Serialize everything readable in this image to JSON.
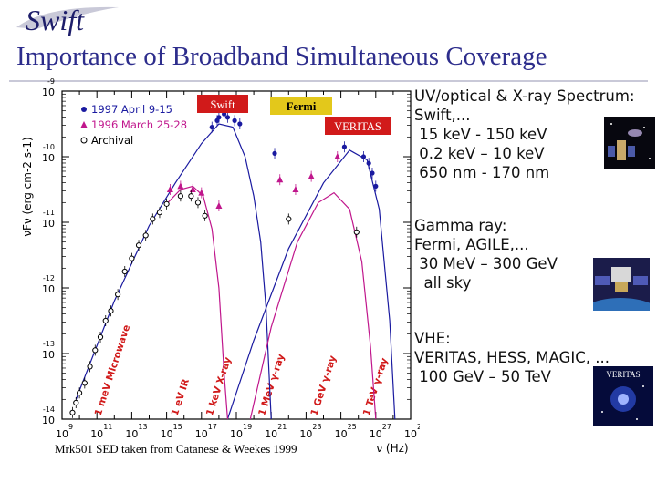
{
  "header": {
    "logo_text": "Swift",
    "title": "Importance of Broadband Simultaneous Coverage"
  },
  "chart_data": {
    "type": "scatter",
    "xlabel": "ν (Hz)",
    "ylabel": "νFν (erg cm-2 s-1)",
    "xlim": [
      9,
      29
    ],
    "ylim": [
      -14,
      -9
    ],
    "x_tick_labels": [
      {
        "base": "10",
        "exp": "9"
      },
      {
        "base": "10",
        "exp": "11"
      },
      {
        "base": "10",
        "exp": "13"
      },
      {
        "base": "10",
        "exp": "15"
      },
      {
        "base": "10",
        "exp": "17"
      },
      {
        "base": "10",
        "exp": "19"
      },
      {
        "base": "10",
        "exp": "21"
      },
      {
        "base": "10",
        "exp": "23"
      },
      {
        "base": "10",
        "exp": "25"
      },
      {
        "base": "10",
        "exp": "27"
      },
      {
        "base": "10",
        "exp": "29"
      }
    ],
    "y_tick_labels": [
      {
        "base": "10",
        "exp": "-9"
      },
      {
        "base": "10",
        "exp": "-10"
      },
      {
        "base": "10",
        "exp": "-11"
      },
      {
        "base": "10",
        "exp": "-12"
      },
      {
        "base": "10",
        "exp": "-13"
      },
      {
        "base": "10",
        "exp": "-14"
      }
    ],
    "legend": [
      {
        "marker": "filled-circle",
        "color": "#1a1aa0",
        "label": "1997 April 9-15"
      },
      {
        "marker": "triangle",
        "color": "#c0168c",
        "label": "1996 March 25-28"
      },
      {
        "marker": "open-circle",
        "color": "#000000",
        "label": "Archival"
      }
    ],
    "instrument_boxes": [
      {
        "label": "Swift",
        "color": "#d11a1a"
      },
      {
        "label": "Fermi",
        "color": "#e3c81b"
      },
      {
        "label": "VERITAS",
        "color": "#d11a1a"
      }
    ],
    "band_labels": [
      "1 meV Microwave",
      "1 eV IR",
      "1 keV X-ray",
      "1 MeV γ-ray",
      "1 GeV γ-ray",
      "1 TeV γ-ray"
    ],
    "band_positions": [
      11,
      15.4,
      17.4,
      20.4,
      23.4,
      26.4
    ],
    "series": [
      {
        "name": "1997 April 9-15",
        "color": "#1a1aa0",
        "marker": "filled-circle",
        "points": [
          [
            17.6,
            -9.55
          ],
          [
            17.9,
            -9.45
          ],
          [
            18.0,
            -9.4
          ],
          [
            18.3,
            -9.35
          ],
          [
            18.5,
            -9.4
          ],
          [
            18.9,
            -9.45
          ],
          [
            19.2,
            -9.5
          ],
          [
            21.2,
            -9.95
          ],
          [
            25.2,
            -9.85
          ],
          [
            26.3,
            -10.0
          ],
          [
            26.6,
            -10.1
          ],
          [
            26.8,
            -10.25
          ],
          [
            27.0,
            -10.45
          ]
        ]
      },
      {
        "name": "1996 March 25-28",
        "color": "#c0168c",
        "marker": "triangle",
        "points": [
          [
            15.2,
            -10.5
          ],
          [
            15.8,
            -10.45
          ],
          [
            16.5,
            -10.5
          ],
          [
            17.0,
            -10.55
          ],
          [
            18.0,
            -10.75
          ],
          [
            21.5,
            -10.35
          ],
          [
            22.4,
            -10.5
          ],
          [
            23.3,
            -10.3
          ],
          [
            24.8,
            -10.0
          ]
        ]
      },
      {
        "name": "Archival",
        "color": "#000000",
        "marker": "open-circle",
        "points": [
          [
            9.6,
            -13.9
          ],
          [
            9.8,
            -13.75
          ],
          [
            10.0,
            -13.6
          ],
          [
            10.3,
            -13.45
          ],
          [
            10.6,
            -13.2
          ],
          [
            10.9,
            -12.95
          ],
          [
            11.2,
            -12.75
          ],
          [
            11.5,
            -12.5
          ],
          [
            11.8,
            -12.35
          ],
          [
            12.2,
            -12.1
          ],
          [
            12.6,
            -11.75
          ],
          [
            13.0,
            -11.55
          ],
          [
            13.4,
            -11.35
          ],
          [
            13.8,
            -11.2
          ],
          [
            14.2,
            -10.95
          ],
          [
            14.6,
            -10.85
          ],
          [
            15.0,
            -10.72
          ],
          [
            15.8,
            -10.6
          ],
          [
            16.4,
            -10.6
          ],
          [
            16.8,
            -10.7
          ],
          [
            17.2,
            -10.9
          ],
          [
            22.0,
            -10.95
          ],
          [
            25.9,
            -11.15
          ]
        ]
      }
    ],
    "models": [
      {
        "name": "1997 synchrotron",
        "color": "#1a1aa0",
        "points": [
          [
            9.8,
            -13.7
          ],
          [
            12,
            -12.2
          ],
          [
            14,
            -11.05
          ],
          [
            15.5,
            -10.4
          ],
          [
            17,
            -9.8
          ],
          [
            18,
            -9.5
          ],
          [
            18.8,
            -9.55
          ],
          [
            19.5,
            -10.0
          ],
          [
            20,
            -10.6
          ],
          [
            20.4,
            -11.3
          ],
          [
            20.7,
            -12.3
          ],
          [
            21.0,
            -14.0
          ]
        ]
      },
      {
        "name": "1997 inverse Compton",
        "color": "#1a1aa0",
        "points": [
          [
            18.5,
            -14.0
          ],
          [
            20,
            -12.8
          ],
          [
            22,
            -11.4
          ],
          [
            24,
            -10.4
          ],
          [
            25.5,
            -9.9
          ],
          [
            26.5,
            -10.05
          ],
          [
            27.2,
            -10.8
          ],
          [
            27.8,
            -12.5
          ],
          [
            28.1,
            -14.0
          ]
        ]
      },
      {
        "name": "1996 synchrotron",
        "color": "#c0168c",
        "points": [
          [
            15,
            -10.72
          ],
          [
            15.8,
            -10.5
          ],
          [
            16.5,
            -10.45
          ],
          [
            17.1,
            -10.6
          ],
          [
            17.6,
            -11.1
          ],
          [
            18.0,
            -12.0
          ],
          [
            18.3,
            -13.3
          ],
          [
            18.5,
            -14.0
          ]
        ]
      },
      {
        "name": "1996 inverse Compton",
        "color": "#c0168c",
        "points": [
          [
            19.8,
            -14.0
          ],
          [
            21,
            -12.6
          ],
          [
            22.5,
            -11.3
          ],
          [
            23.7,
            -10.7
          ],
          [
            24.6,
            -10.55
          ],
          [
            25.5,
            -10.8
          ],
          [
            26.2,
            -11.6
          ],
          [
            26.7,
            -12.9
          ],
          [
            27.0,
            -14.0
          ]
        ]
      }
    ],
    "caption": "Mrk501 SED taken from Catanese & Weekes 1999"
  },
  "panels": [
    {
      "lines": [
        "UV/optical & X-ray Spectrum:",
        "Swift,...",
        " 15 keV - 150 keV",
        " 0.2 keV – 10 keV",
        " 650 nm - 170 nm"
      ]
    },
    {
      "lines": [
        "Gamma ray:",
        "Fermi, AGILE,...",
        " 30 MeV – 300 GeV",
        "  all sky"
      ]
    },
    {
      "lines": [
        "VHE:",
        "VERITAS, HESS, MAGIC, ...",
        " 100 GeV – 50 TeV"
      ],
      "image_text": "VERITAS"
    }
  ]
}
